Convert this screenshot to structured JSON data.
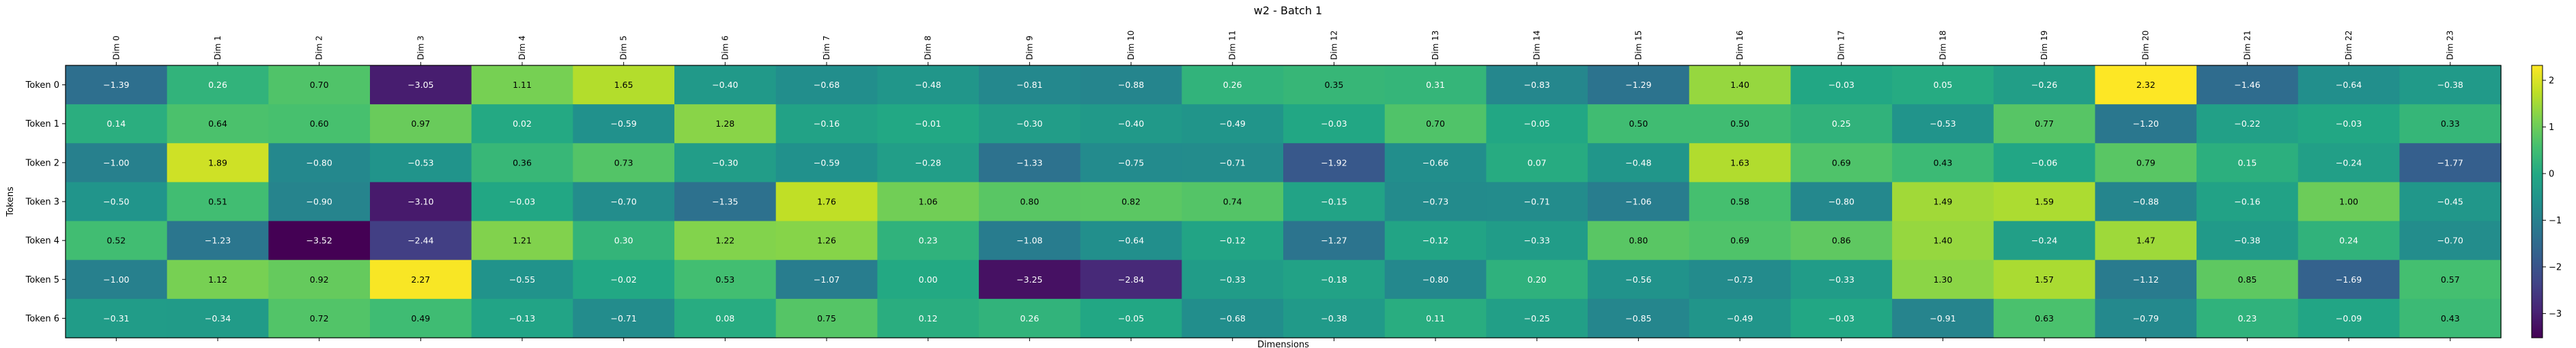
{
  "chart_data": {
    "type": "heatmap",
    "title": "w2 - Batch 1",
    "xlabel": "Dimensions",
    "ylabel": "Tokens",
    "columns": [
      "Dim 0",
      "Dim 1",
      "Dim 2",
      "Dim 3",
      "Dim 4",
      "Dim 5",
      "Dim 6",
      "Dim 7",
      "Dim 8",
      "Dim 9",
      "Dim 10",
      "Dim 11",
      "Dim 12",
      "Dim 13",
      "Dim 14",
      "Dim 15",
      "Dim 16",
      "Dim 17",
      "Dim 18",
      "Dim 19",
      "Dim 20",
      "Dim 21",
      "Dim 22",
      "Dim 23"
    ],
    "rows": [
      "Token 0",
      "Token 1",
      "Token 2",
      "Token 3",
      "Token 4",
      "Token 5",
      "Token 6"
    ],
    "values": [
      [
        -1.39,
        0.26,
        0.7,
        -3.05,
        1.11,
        1.65,
        -0.4,
        -0.68,
        -0.48,
        -0.81,
        -0.88,
        0.26,
        0.35,
        0.31,
        -0.83,
        -1.29,
        1.4,
        -0.03,
        0.05,
        -0.26,
        2.32,
        -1.46,
        -0.64,
        -0.38
      ],
      [
        0.14,
        0.64,
        0.6,
        0.97,
        0.02,
        -0.59,
        1.28,
        -0.16,
        -0.01,
        -0.3,
        -0.4,
        -0.49,
        -0.03,
        0.7,
        -0.05,
        0.5,
        0.5,
        0.25,
        -0.53,
        0.77,
        -1.2,
        -0.22,
        -0.03,
        0.33
      ],
      [
        -1.0,
        1.89,
        -0.8,
        -0.53,
        0.36,
        0.73,
        -0.3,
        -0.59,
        -0.28,
        -1.33,
        -0.75,
        -0.71,
        -1.92,
        -0.66,
        0.07,
        -0.48,
        1.63,
        0.69,
        0.43,
        -0.06,
        0.79,
        0.15,
        -0.24,
        -1.77
      ],
      [
        -0.5,
        0.51,
        -0.9,
        -3.1,
        -0.03,
        -0.7,
        -1.35,
        1.76,
        1.06,
        0.8,
        0.82,
        0.74,
        -0.15,
        -0.73,
        -0.71,
        -1.06,
        0.58,
        -0.8,
        1.49,
        1.59,
        -0.88,
        -0.16,
        1.0,
        -0.45
      ],
      [
        0.52,
        -1.23,
        -3.52,
        -2.44,
        1.21,
        0.3,
        1.22,
        1.26,
        0.23,
        -1.08,
        -0.64,
        -0.12,
        -1.27,
        -0.12,
        -0.33,
        0.8,
        0.69,
        0.86,
        1.4,
        -0.24,
        1.47,
        -0.38,
        0.24,
        -0.7
      ],
      [
        -1.0,
        1.12,
        0.92,
        2.27,
        -0.55,
        -0.02,
        0.53,
        -1.07,
        0.0,
        -3.25,
        -2.84,
        -0.33,
        -0.18,
        -0.8,
        0.2,
        -0.56,
        -0.73,
        -0.33,
        1.3,
        1.57,
        -1.12,
        0.85,
        -1.69,
        0.57
      ],
      [
        -0.31,
        -0.34,
        0.72,
        0.49,
        -0.13,
        -0.71,
        0.08,
        0.75,
        0.12,
        0.26,
        -0.05,
        -0.68,
        -0.38,
        0.11,
        -0.25,
        -0.85,
        -0.49,
        -0.03,
        -0.91,
        0.63,
        -0.79,
        0.23,
        -0.09,
        0.43
      ]
    ],
    "colormap": "viridis",
    "color_range": [
      -3.52,
      2.32
    ],
    "colorbar_ticks": [
      2,
      1,
      0,
      -1,
      -2,
      -3
    ],
    "colorbar_tick_labels": [
      "2",
      "1",
      "0",
      "−1",
      "−2",
      "−3"
    ],
    "grid": false,
    "legend": "colorbar right"
  }
}
